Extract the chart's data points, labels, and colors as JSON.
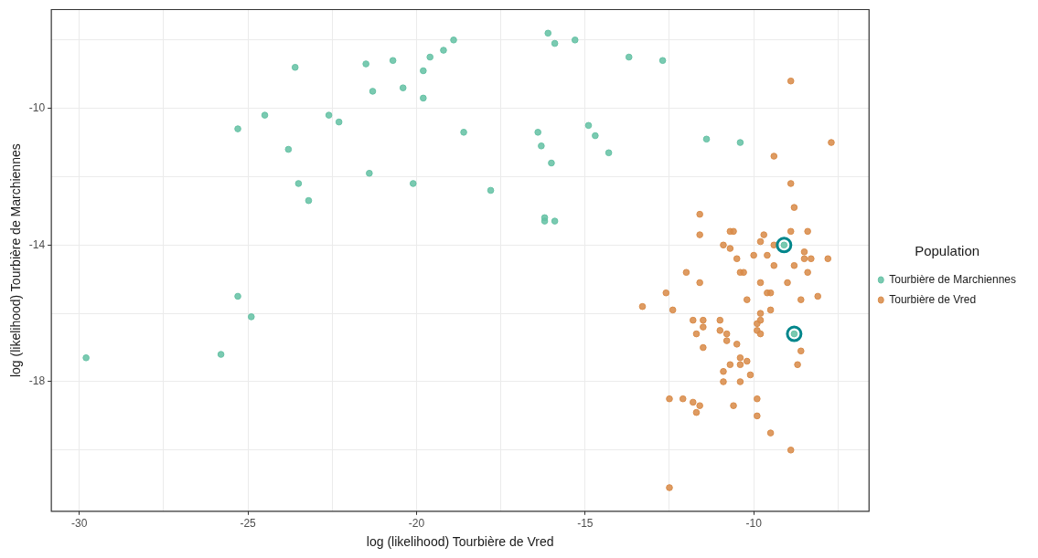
{
  "chart_data": {
    "type": "scatter",
    "xlabel": "log (likelihood) Tourbière de Vred",
    "ylabel": "log (likelihood) Tourbière de Marchiennes",
    "legend_title": "Population",
    "xlim": [
      -30.83,
      -6.58
    ],
    "ylim": [
      -21.79,
      -7.11
    ],
    "xticks": [
      -30,
      {
        "value": -27.5,
        "label": null
      },
      -25,
      {
        "value": -22.5,
        "label": null
      },
      -20,
      {
        "value": -17.5,
        "label": null
      },
      -15,
      {
        "value": -12.5,
        "label": null
      },
      -10,
      {
        "value": -7.5,
        "label": null
      }
    ],
    "yticks": [
      {
        "value": -20,
        "label": null
      },
      -18,
      {
        "value": -16,
        "label": null
      },
      -14,
      {
        "value": -12,
        "label": null
      },
      -10,
      {
        "value": -8,
        "label": null
      }
    ],
    "grid": true,
    "legend": "right",
    "marker": "circle",
    "series": [
      {
        "name": "Tourbière de Marchiennes",
        "color": "#66c2a5",
        "x": [
          -29.8,
          -25.8,
          -25.3,
          -24.9,
          -25.3,
          -24.5,
          -23.6,
          -23.8,
          -23.5,
          -23.2,
          -22.6,
          -22.3,
          -21.5,
          -21.3,
          -21.4,
          -20.7,
          -20.4,
          -20.1,
          -19.8,
          -19.8,
          -19.6,
          -19.2,
          -18.9,
          -18.6,
          -16.1,
          -15.9,
          -15.3,
          -17.8,
          -16.4,
          -16.3,
          -16.0,
          -16.2,
          -16.2,
          -15.9,
          -14.9,
          -14.7,
          -14.3,
          -13.7,
          -12.7,
          -11.4,
          -10.4,
          -9.1,
          -8.8
        ],
        "values": [
          -17.3,
          -17.2,
          -15.5,
          -16.1,
          -10.6,
          -10.2,
          -8.8,
          -11.2,
          -12.2,
          -12.7,
          -10.2,
          -10.4,
          -8.7,
          -9.5,
          -11.9,
          -8.6,
          -9.4,
          -12.2,
          -8.9,
          -9.7,
          -8.5,
          -8.3,
          -8.0,
          -10.7,
          -7.8,
          -8.1,
          -8.0,
          -12.4,
          -10.7,
          -11.1,
          -11.6,
          -13.2,
          -13.3,
          -13.3,
          -10.5,
          -10.8,
          -11.3,
          -8.5,
          -8.6,
          -10.9,
          -11.0,
          -14.0,
          -16.6
        ]
      },
      {
        "name": "Tourbière de Vred",
        "color": "#d98c4a",
        "x": [
          -8.9,
          -7.7,
          -9.4,
          -8.9,
          -8.8,
          -11.6,
          -11.6,
          -10.7,
          -10.6,
          -9.7,
          -9.8,
          -8.9,
          -8.4,
          -9.4,
          -10.9,
          -10.7,
          -10.0,
          -9.6,
          -8.5,
          -8.5,
          -8.3,
          -7.8,
          -10.5,
          -9.4,
          -8.8,
          -8.4,
          -12.0,
          -10.4,
          -10.3,
          -11.6,
          -9.8,
          -9.0,
          -12.6,
          -9.6,
          -9.5,
          -10.2,
          -8.1,
          -8.6,
          -13.3,
          -12.4,
          -9.5,
          -9.8,
          -9.8,
          -9.9,
          -11.8,
          -11.5,
          -11.5,
          -11.0,
          -11.0,
          -9.9,
          -9.8,
          -11.7,
          -10.8,
          -10.8,
          -10.5,
          -11.5,
          -8.6,
          -8.7,
          -10.4,
          -10.2,
          -10.7,
          -10.4,
          -10.9,
          -10.1,
          -10.9,
          -10.4,
          -12.5,
          -12.1,
          -11.8,
          -11.6,
          -11.7,
          -10.6,
          -9.9,
          -9.9,
          -9.5,
          -8.9,
          -12.5
        ],
        "values": [
          -9.2,
          -11.0,
          -11.4,
          -12.2,
          -12.9,
          -13.1,
          -13.7,
          -13.6,
          -13.6,
          -13.7,
          -13.9,
          -13.6,
          -13.6,
          -14.0,
          -14.0,
          -14.1,
          -14.3,
          -14.3,
          -14.2,
          -14.4,
          -14.4,
          -14.4,
          -14.4,
          -14.6,
          -14.6,
          -14.8,
          -14.8,
          -14.8,
          -14.8,
          -15.1,
          -15.1,
          -15.1,
          -15.4,
          -15.4,
          -15.4,
          -15.6,
          -15.5,
          -15.6,
          -15.8,
          -15.9,
          -15.9,
          -16.0,
          -16.2,
          -16.3,
          -16.2,
          -16.2,
          -16.4,
          -16.2,
          -16.5,
          -16.5,
          -16.6,
          -16.6,
          -16.6,
          -16.8,
          -16.9,
          -17.0,
          -17.1,
          -17.5,
          -17.3,
          -17.4,
          -17.5,
          -17.5,
          -17.7,
          -17.8,
          -18.0,
          -18.0,
          -18.5,
          -18.5,
          -18.6,
          -18.7,
          -18.9,
          -18.7,
          -18.5,
          -19.0,
          -19.5,
          -20.0,
          -21.1
        ]
      },
      {
        "color": "#00868b",
        "x": [
          -9.1,
          -8.8
        ],
        "values": [
          -14.0,
          -16.6
        ]
      }
    ]
  }
}
